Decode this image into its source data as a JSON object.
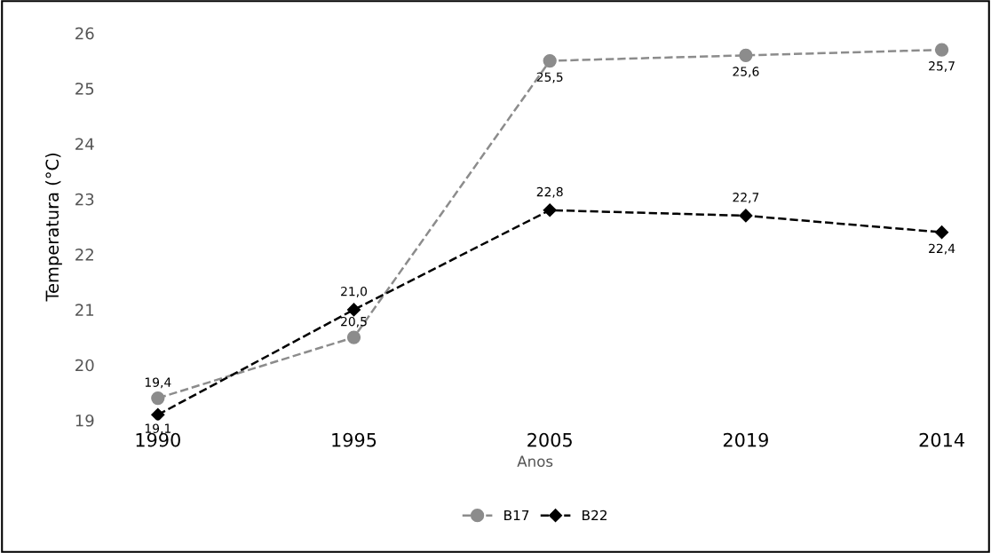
{
  "chart_data": {
    "type": "line",
    "xlabel": "Anos",
    "ylabel": "Temperatura (°C)",
    "categories": [
      "1990",
      "1995",
      "2005",
      "2019",
      "2014"
    ],
    "series": [
      {
        "name": "B17",
        "color": "#8c8c8c",
        "marker": "circle",
        "line_style": "dashed",
        "values": [
          19.4,
          20.5,
          25.5,
          25.6,
          25.7
        ],
        "value_labels": [
          "19,4",
          "20,5",
          "25,5",
          "25,6",
          "25,7"
        ]
      },
      {
        "name": "B22",
        "color": "#000000",
        "marker": "diamond",
        "line_style": "dashed",
        "values": [
          19.1,
          21.0,
          22.8,
          22.7,
          22.4
        ],
        "value_labels": [
          "19,1",
          "21,0",
          "22,8",
          "22,7",
          "22,4"
        ]
      }
    ],
    "ylim": [
      19,
      26
    ],
    "yticks": [
      19,
      20,
      21,
      22,
      23,
      24,
      25,
      26
    ],
    "grid": false,
    "legend": "bottom"
  }
}
